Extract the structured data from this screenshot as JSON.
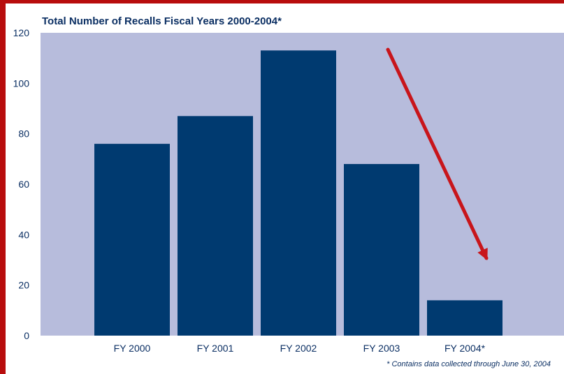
{
  "colors": {
    "frame": "#b80d0d",
    "plot_bg": "#b7bcdc",
    "bar": "#003a70",
    "text": "#0b2f63",
    "arrow": "#c8151b"
  },
  "chart_data": {
    "type": "bar",
    "title": "Total Number of Recalls Fiscal Years 2000-2004*",
    "categories": [
      "FY 2000",
      "FY 2001",
      "FY 2002",
      "FY 2003",
      "FY 2004*"
    ],
    "values": [
      76,
      87,
      113,
      68,
      14
    ],
    "xlabel": "",
    "ylabel": "",
    "ylim": [
      0,
      120
    ],
    "yticks": [
      0,
      20,
      40,
      60,
      80,
      100,
      120
    ],
    "grid": false,
    "legend": "none",
    "footnote": "* Contains data collected through June 30, 2004",
    "annotation": {
      "type": "arrow",
      "from_category": "FY 2003",
      "to_category": "FY 2004*",
      "meaning": "downward trend"
    }
  }
}
